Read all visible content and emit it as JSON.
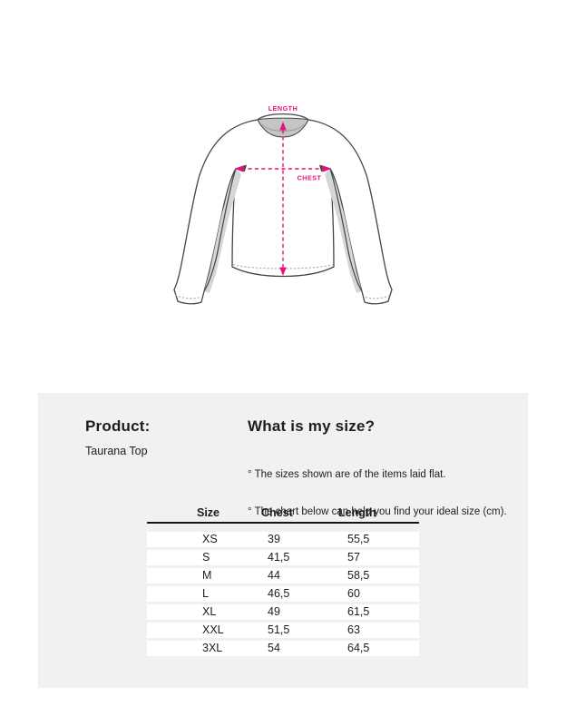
{
  "diagram": {
    "length_label": "LENGTH",
    "chest_label": "CHEST",
    "accent_color": "#e6117e"
  },
  "panel": {
    "product_heading": "Product:",
    "product_name": "Taurana Top",
    "size_heading": "What is my size?",
    "notes": [
      "° The sizes shown are of the items laid flat.",
      "° The chart below can help you find your ideal size (cm)."
    ],
    "table": {
      "headers": [
        "Size",
        "Chest",
        "Length"
      ],
      "rows": [
        [
          "XS",
          "39",
          "55,5"
        ],
        [
          "S",
          "41,5",
          "57"
        ],
        [
          "M",
          "44",
          "58,5"
        ],
        [
          "L",
          "46,5",
          "60"
        ],
        [
          "XL",
          "49",
          "61,5"
        ],
        [
          "XXL",
          "51,5",
          "63"
        ],
        [
          "3XL",
          "54",
          "64,5"
        ]
      ]
    }
  },
  "colors": {
    "panel_bg": "#f2f1ef",
    "row_bg": "#ffffff",
    "text": "#1d1d1d",
    "accent": "#e6117e",
    "outline": "#454545"
  }
}
